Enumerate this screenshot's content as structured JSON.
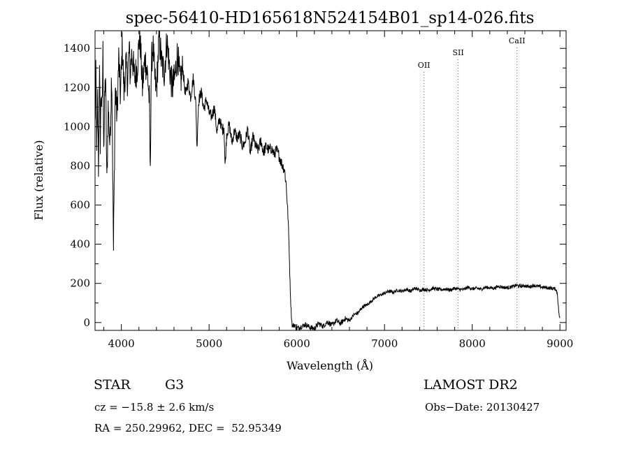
{
  "chart_data": {
    "type": "line",
    "title": "spec-56410-HD165618N524154B01_sp14-026.fits",
    "xlabel": "Wavelength (Å)",
    "ylabel": "Flux (relative)",
    "xlim": [
      3700,
      9070
    ],
    "ylim": [
      -40,
      1490
    ],
    "xticks": [
      4000,
      5000,
      6000,
      7000,
      8000,
      9000
    ],
    "yticks": [
      0,
      200,
      400,
      600,
      800,
      1000,
      1200,
      1400
    ],
    "line_color": "#000000",
    "marker_color": "#c0392b",
    "series": [
      {
        "x": [
          3700,
          3710,
          3720,
          3730,
          3740,
          3750,
          3760,
          3770,
          3780,
          3790,
          3800,
          3810,
          3820,
          3835,
          3850,
          3870,
          3890,
          3910,
          3930,
          3950,
          3970,
          3990,
          4010,
          4030,
          4050,
          4070,
          4090,
          4100,
          4120,
          4150,
          4180,
          4210,
          4240,
          4270,
          4300,
          4320,
          4330,
          4340,
          4360,
          4380,
          4400,
          4430,
          4460,
          4490,
          4520,
          4550,
          4580,
          4610,
          4640,
          4670,
          4700,
          4730,
          4760,
          4790,
          4820,
          4850,
          4861,
          4880,
          4910,
          4940,
          4970,
          5000,
          5030,
          5060,
          5090,
          5120,
          5150,
          5170,
          5183,
          5200,
          5230,
          5260,
          5290,
          5320,
          5350,
          5380,
          5410,
          5440,
          5470,
          5500,
          5530,
          5560,
          5590,
          5620,
          5650,
          5680,
          5710,
          5740,
          5770,
          5800,
          5820,
          5840,
          5860,
          5870,
          5880,
          5890,
          5900,
          5910,
          5920,
          5930,
          5940,
          5950,
          5970,
          6000,
          6050,
          6100,
          6150,
          6200,
          6250,
          6300,
          6350,
          6400,
          6450,
          6500,
          6550,
          6600,
          6650,
          6700,
          6750,
          6800,
          6850,
          6900,
          6950,
          7000,
          7050,
          7100,
          7150,
          7200,
          7250,
          7300,
          7350,
          7400,
          7450,
          7500,
          7550,
          7600,
          7650,
          7700,
          7750,
          7800,
          7850,
          7900,
          7950,
          8000,
          8050,
          8100,
          8150,
          8200,
          8250,
          8300,
          8350,
          8400,
          8450,
          8500,
          8550,
          8600,
          8650,
          8700,
          8750,
          8800,
          8850,
          8900,
          8950,
          8970,
          8985,
          9000
        ],
        "y": [
          1000,
          1280,
          850,
          1150,
          760,
          1300,
          930,
          1200,
          1050,
          1380,
          880,
          1150,
          1260,
          700,
          1100,
          900,
          1300,
          360,
          1200,
          1050,
          1350,
          1150,
          1420,
          1180,
          1320,
          1240,
          1400,
          1270,
          1380,
          1250,
          1300,
          1480,
          1200,
          1350,
          1260,
          1120,
          730,
          1300,
          1420,
          1250,
          1180,
          1460,
          1320,
          1280,
          1440,
          1300,
          1200,
          1250,
          1380,
          1220,
          1300,
          1160,
          1230,
          1150,
          1250,
          1110,
          890,
          1130,
          1180,
          1090,
          1140,
          1070,
          1050,
          1100,
          970,
          1040,
          980,
          1000,
          790,
          960,
          1010,
          920,
          980,
          940,
          960,
          900,
          920,
          990,
          860,
          950,
          900,
          880,
          930,
          870,
          900,
          880,
          890,
          860,
          880,
          850,
          820,
          800,
          780,
          740,
          700,
          620,
          540,
          420,
          250,
          110,
          20,
          -20,
          -10,
          -30,
          -20,
          -10,
          -25,
          -30,
          -5,
          -20,
          5,
          -15,
          10,
          -5,
          20,
          10,
          40,
          50,
          80,
          90,
          110,
          130,
          140,
          150,
          160,
          155,
          165,
          160,
          170,
          160,
          175,
          165,
          170,
          165,
          175,
          170,
          168,
          172,
          165,
          175,
          170,
          168,
          180,
          172,
          175,
          170,
          180,
          178,
          175,
          185,
          180,
          178,
          182,
          190,
          185,
          188,
          182,
          190,
          185,
          180,
          178,
          175,
          172,
          150,
          60,
          10
        ]
      }
    ],
    "line_markers": [
      {
        "label": "OII",
        "x": 7450
      },
      {
        "label": "SII",
        "x": 7840
      },
      {
        "label": "CaII",
        "x": 8510
      }
    ]
  },
  "info": {
    "object_class": "STAR",
    "subclass": "G3",
    "survey": "LAMOST DR2",
    "velocity": "cz = −15.8 ± 2.6 km/s",
    "obs_date": "Obs−Date: 20130427",
    "coords": "RA = 250.29962, DEC =  52.95349"
  }
}
